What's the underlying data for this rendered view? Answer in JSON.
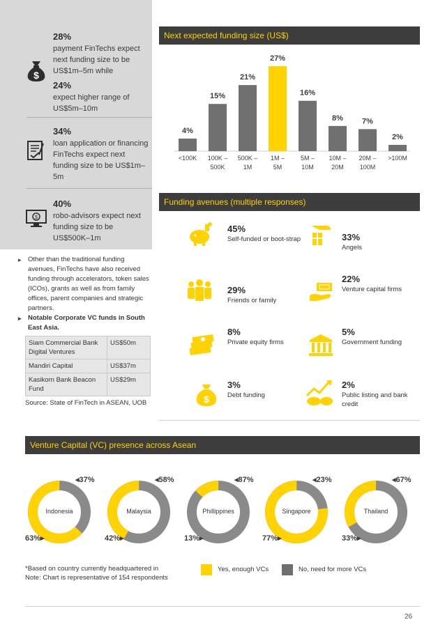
{
  "left_stats": [
    {
      "pct": "28%",
      "text": "payment FinTechs expect next funding size to be US$1m–5m while"
    },
    {
      "pct": "24%",
      "text": "expect higher range of US$5m–10m"
    },
    {
      "pct": "34%",
      "text": "loan application or financing FinTechs expect next funding size to be US$1m–5m"
    },
    {
      "pct": "40%",
      "text": "robo-advisors expect next funding size to be US$500K–1m"
    }
  ],
  "bullets": [
    "Other than the traditional funding avenues, FinTechs have also received funding through accelerators, token sales (ICOs), grants as well as from family offices, parent companies and strategic partners.",
    "Notable Corporate VC funds in South East Asia."
  ],
  "vc_table": [
    {
      "name": "Siam Commercial Bank Digital Ventures",
      "value": "US$50m"
    },
    {
      "name": "Mandiri Capital",
      "value": "US$37m"
    },
    {
      "name": "Kasikorn Bank Beacon Fund",
      "value": "US$29m"
    }
  ],
  "source": "Source: State of FinTech in ASEAN, UOB",
  "funding_size_title": "Next expected funding size (US$)",
  "chart_data": {
    "type": "bar",
    "title": "Next expected funding size (US$)",
    "categories": [
      "<100K",
      "100K – 500K",
      "500K – 1M",
      "1M – 5M",
      "5M – 10M",
      "10M – 20M",
      "20M – 100M",
      ">100M"
    ],
    "category_lines": [
      [
        "<100K"
      ],
      [
        "100K –",
        "500K"
      ],
      [
        "500K –",
        "1M"
      ],
      [
        "1M –",
        "5M"
      ],
      [
        "5M –",
        "10M"
      ],
      [
        "10M –",
        "20M"
      ],
      [
        "20M –",
        "100M"
      ],
      [
        ">100M"
      ]
    ],
    "values": [
      4,
      15,
      21,
      27,
      16,
      8,
      7,
      2
    ],
    "value_labels": [
      "4%",
      "15%",
      "21%",
      "27%",
      "16%",
      "8%",
      "7%",
      "2%"
    ],
    "highlight_index": 3,
    "ylim": [
      0,
      27
    ],
    "colors": {
      "bar": "#707070",
      "highlight": "#ffd200"
    }
  },
  "funding_avenues_title": "Funding avenues (multiple responses)",
  "funding_avenues": [
    {
      "pct": "45%",
      "label": "Self-funded or boot-strap",
      "icon": "piggy-bank-icon"
    },
    {
      "pct": "33%",
      "label": "Angels",
      "icon": "hand-gift-icon"
    },
    {
      "pct": "29%",
      "label": "Friends or family",
      "icon": "people-group-icon"
    },
    {
      "pct": "22%",
      "label": "Venture capital firms",
      "icon": "hand-money-icon"
    },
    {
      "pct": "8%",
      "label": "Private equity firms",
      "icon": "cash-stack-icon"
    },
    {
      "pct": "5%",
      "label": "Government funding",
      "icon": "government-building-icon"
    },
    {
      "pct": "3%",
      "label": "Debt funding",
      "icon": "money-bag-icon"
    },
    {
      "pct": "2%",
      "label": "Public listing and bank credit",
      "icon": "bull-bear-icon"
    }
  ],
  "vc_presence_title": "Venture Capital (VC) presence across Asean",
  "vc_presence": [
    {
      "country": "Indonesia",
      "yes": 63,
      "no": 37,
      "yes_label": "63%",
      "no_label": "37%"
    },
    {
      "country": "Malaysia",
      "yes": 42,
      "no": 58,
      "yes_label": "42%",
      "no_label": "58%"
    },
    {
      "country": "Phillippines",
      "yes": 13,
      "no": 87,
      "yes_label": "13%",
      "no_label": "87%"
    },
    {
      "country": "Singapore",
      "yes": 77,
      "no": 23,
      "yes_label": "77%",
      "no_label": "23%"
    },
    {
      "country": "Thailand",
      "yes": 33,
      "no": 67,
      "yes_label": "33%",
      "no_label": "67%"
    }
  ],
  "footnote_1": "*Based on country currently headquartered in",
  "footnote_2": "Note: Chart is representative of 154 respondents",
  "legend": {
    "yes": "Yes, enough VCs",
    "no": "No, need for more VCs"
  },
  "colors": {
    "yellow": "#ffd200",
    "gray": "#8a8a8a",
    "dark": "#3d3d3d"
  },
  "page_number": "26"
}
